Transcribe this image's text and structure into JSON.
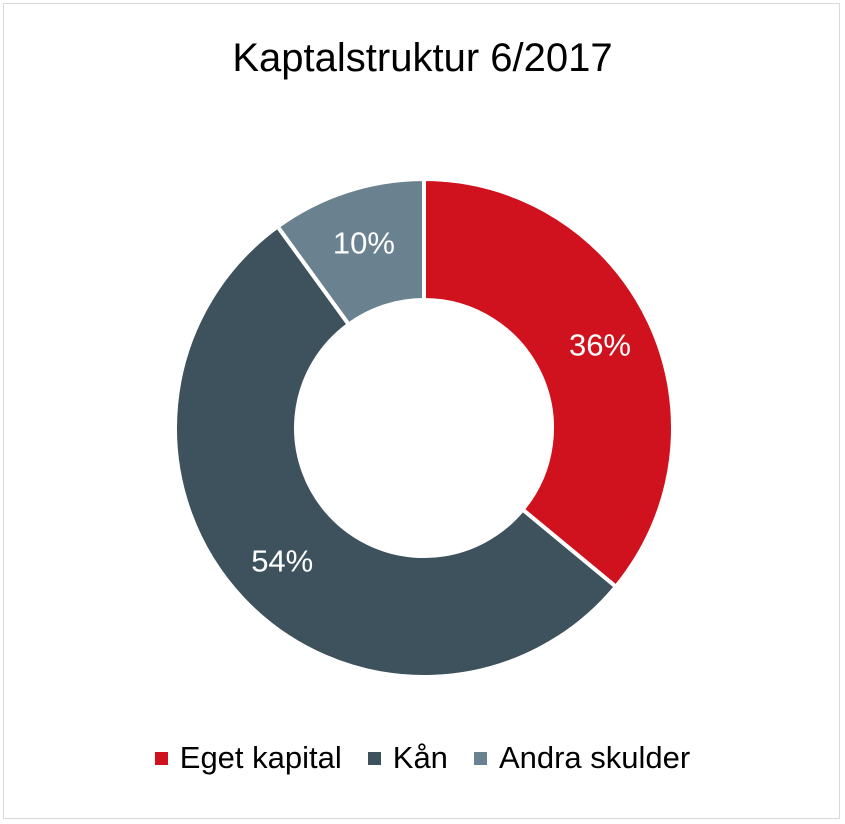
{
  "chart_data": {
    "type": "pie",
    "title": "Kaptalstruktur 6/2017",
    "categories": [
      "Eget kapital",
      "Kån",
      "Andra skulder"
    ],
    "values": [
      36,
      54,
      10
    ],
    "data_labels": [
      "36%",
      "54%",
      "10%"
    ],
    "colors": [
      "#d0121e",
      "#3d525c",
      "#6a8290"
    ],
    "style": "donut",
    "legend": "bottom"
  }
}
